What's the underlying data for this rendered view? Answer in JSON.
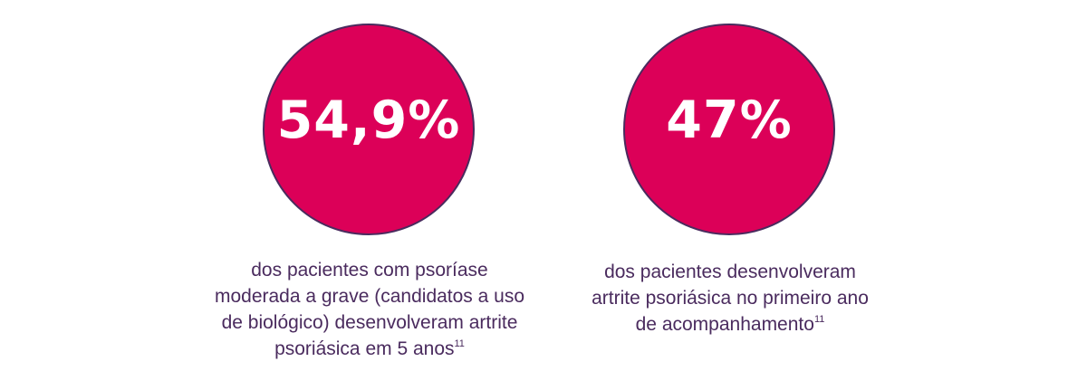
{
  "colors": {
    "circle_fill": "#dc0058",
    "circle_border": "#4a2b5e",
    "value_text": "#ffffff",
    "caption_text": "#4a2b5e",
    "background": "#ffffff"
  },
  "stats": [
    {
      "value": "54,9%",
      "caption_lines": [
        "dos pacientes com psoríase",
        "moderada a grave (candidatos a uso",
        "de biológico) desenvolveram artrite",
        "psoriásica em 5 anos"
      ],
      "reference": "11"
    },
    {
      "value": "47%",
      "caption_lines": [
        "dos pacientes desenvolveram",
        "artrite psoriásica no primeiro ano",
        "de acompanhamento"
      ],
      "reference": "11"
    }
  ]
}
